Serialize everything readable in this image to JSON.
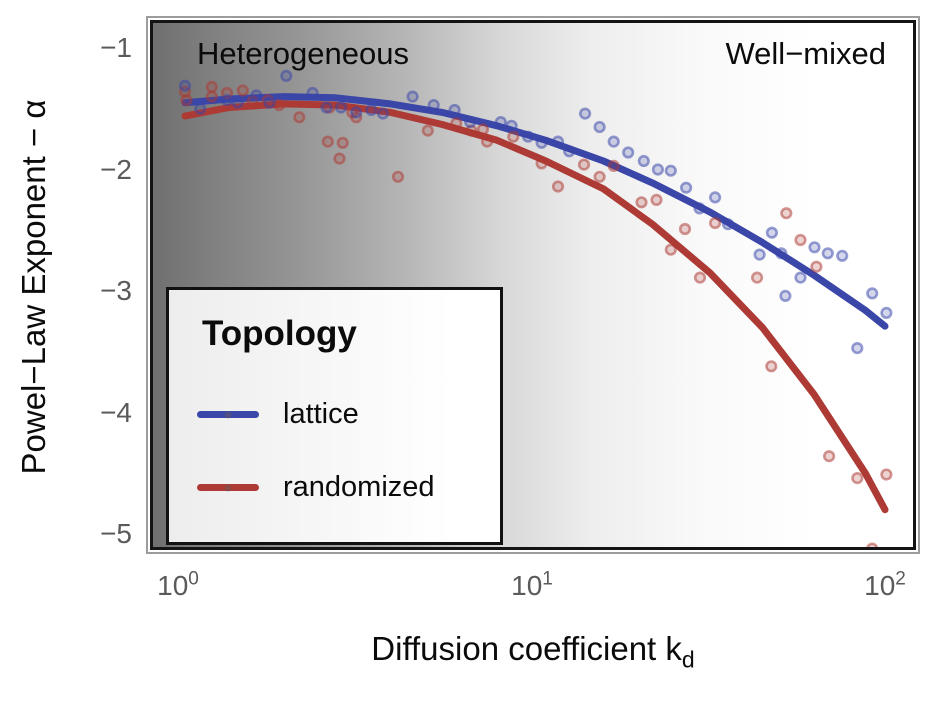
{
  "figure": {
    "y_axis": {
      "title": "Powel−Law Exponent − α",
      "ticks": [
        "−1",
        "−2",
        "−3",
        "−4",
        "−5"
      ]
    },
    "x_axis": {
      "title_main": "Diffusion coefficient k",
      "title_sub": "d",
      "ticks": [
        {
          "base": "10",
          "exp": "0"
        },
        {
          "base": "10",
          "exp": "1"
        },
        {
          "base": "10",
          "exp": "2"
        }
      ]
    },
    "annotations": {
      "left": "Heterogeneous",
      "right": "Well−mixed"
    },
    "legend": {
      "title": "Topology",
      "items": [
        {
          "label": "lattice",
          "color": "#3a46a8"
        },
        {
          "label": "randomized",
          "color": "#ad3a34"
        }
      ]
    }
  },
  "chart_data": {
    "type": "scatter",
    "x_scale": "log",
    "title": "",
    "xlabel": "Diffusion coefficient k_d",
    "ylabel": "Powel−Law Exponent − α",
    "xlim": [
      0.86,
      120
    ],
    "ylim": [
      -5.13,
      -0.79
    ],
    "x_ticks": [
      1,
      10,
      100
    ],
    "y_ticks": [
      -1,
      -2,
      -3,
      -4,
      -5
    ],
    "grid": false,
    "legend_title": "Topology",
    "legend_position": "bottom-left",
    "annotations": [
      "Heterogeneous",
      "Well−mixed"
    ],
    "series": [
      {
        "name": "lattice",
        "color": "#3a46a8",
        "points": [
          [
            1.05,
            -1.31
          ],
          [
            1.16,
            -1.5
          ],
          [
            1.38,
            -1.43
          ],
          [
            1.48,
            -1.45
          ],
          [
            1.67,
            -1.39
          ],
          [
            1.82,
            -1.45
          ],
          [
            2.03,
            -1.23
          ],
          [
            2.41,
            -1.37
          ],
          [
            2.64,
            -1.49
          ],
          [
            2.9,
            -1.49
          ],
          [
            3.2,
            -1.53
          ],
          [
            3.53,
            -1.51
          ],
          [
            3.81,
            -1.54
          ],
          [
            4.62,
            -1.4
          ],
          [
            5.3,
            -1.47
          ],
          [
            6.07,
            -1.51
          ],
          [
            6.72,
            -1.61
          ],
          [
            8.2,
            -1.61
          ],
          [
            8.8,
            -1.64
          ],
          [
            9.8,
            -1.73
          ],
          [
            10.7,
            -1.78
          ],
          [
            11.9,
            -1.77
          ],
          [
            12.8,
            -1.85
          ],
          [
            14.2,
            -1.54
          ],
          [
            15.6,
            -1.65
          ],
          [
            17.1,
            -1.77
          ],
          [
            18.8,
            -1.86
          ],
          [
            20.8,
            -1.93
          ],
          [
            22.8,
            -2.0
          ],
          [
            24.8,
            -2.01
          ],
          [
            27.4,
            -2.15
          ],
          [
            29.9,
            -2.32
          ],
          [
            33.1,
            -2.23
          ],
          [
            36.0,
            -2.45
          ],
          [
            44.2,
            -2.7
          ],
          [
            47.9,
            -2.52
          ],
          [
            50.9,
            -2.69
          ],
          [
            52.3,
            -3.04
          ],
          [
            57.7,
            -2.89
          ],
          [
            63.2,
            -2.64
          ],
          [
            68.9,
            -2.69
          ],
          [
            75.7,
            -2.71
          ],
          [
            83.5,
            -3.47
          ],
          [
            92.0,
            -3.02
          ],
          [
            100.9,
            -3.18
          ]
        ],
        "trend": {
          "x": [
            1.05,
            1.4,
            2,
            2.8,
            4,
            5.6,
            8,
            11,
            16,
            22,
            32,
            45,
            63,
            88,
            100
          ],
          "y": [
            -1.45,
            -1.42,
            -1.4,
            -1.41,
            -1.46,
            -1.53,
            -1.64,
            -1.76,
            -1.93,
            -2.11,
            -2.35,
            -2.6,
            -2.87,
            -3.16,
            -3.29
          ]
        }
      },
      {
        "name": "randomized",
        "color": "#ad3a34",
        "points": [
          [
            1.05,
            -1.36
          ],
          [
            1.06,
            -1.43
          ],
          [
            1.25,
            -1.32
          ],
          [
            1.25,
            -1.4
          ],
          [
            1.38,
            -1.37
          ],
          [
            1.53,
            -1.35
          ],
          [
            1.63,
            -1.44
          ],
          [
            1.8,
            -1.43
          ],
          [
            1.94,
            -1.47
          ],
          [
            2.21,
            -1.57
          ],
          [
            2.66,
            -1.77
          ],
          [
            2.69,
            -1.49
          ],
          [
            2.87,
            -1.91
          ],
          [
            2.93,
            -1.78
          ],
          [
            3.12,
            -1.53
          ],
          [
            3.2,
            -1.57
          ],
          [
            4.2,
            -2.06
          ],
          [
            5.1,
            -1.68
          ],
          [
            6.14,
            -1.62
          ],
          [
            6.77,
            -1.68
          ],
          [
            7.3,
            -1.67
          ],
          [
            7.5,
            -1.77
          ],
          [
            8.9,
            -1.73
          ],
          [
            10.7,
            -1.95
          ],
          [
            11.9,
            -2.14
          ],
          [
            14.1,
            -1.96
          ],
          [
            15.6,
            -2.06
          ],
          [
            17.1,
            -1.97
          ],
          [
            20.5,
            -2.27
          ],
          [
            22.6,
            -2.25
          ],
          [
            24.8,
            -2.66
          ],
          [
            27.2,
            -2.49
          ],
          [
            30.0,
            -2.89
          ],
          [
            33.1,
            -2.44
          ],
          [
            43.5,
            -2.89
          ],
          [
            47.7,
            -3.62
          ],
          [
            52.6,
            -2.36
          ],
          [
            57.7,
            -2.58
          ],
          [
            64.0,
            -2.8
          ],
          [
            69.5,
            -4.36
          ],
          [
            83.5,
            -4.54
          ],
          [
            92.0,
            -5.12
          ],
          [
            100.9,
            -4.51
          ]
        ],
        "trend": {
          "x": [
            1.05,
            1.4,
            2,
            2.8,
            4,
            5.6,
            8,
            11,
            16,
            22,
            32,
            45,
            63,
            88,
            100
          ],
          "y": [
            -1.56,
            -1.49,
            -1.46,
            -1.47,
            -1.53,
            -1.63,
            -1.76,
            -1.93,
            -2.16,
            -2.45,
            -2.85,
            -3.3,
            -3.85,
            -4.5,
            -4.8
          ]
        }
      }
    ]
  }
}
